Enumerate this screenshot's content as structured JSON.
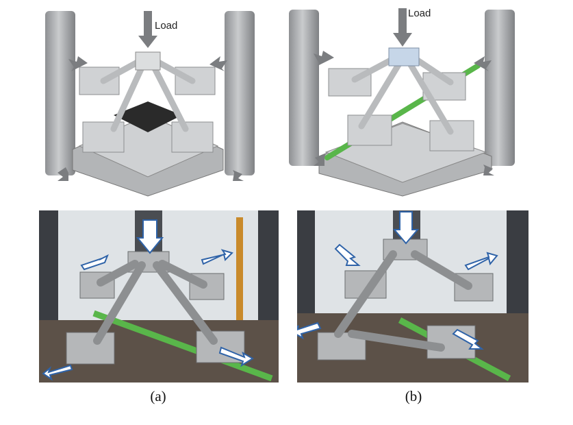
{
  "figure": {
    "panels": [
      {
        "id": "a",
        "load_label": "Load",
        "caption": "(a)"
      },
      {
        "id": "b",
        "load_label": "Load",
        "caption": "(b)"
      }
    ]
  },
  "colors": {
    "steel_light": "#d4d6d8",
    "steel_mid": "#a9abad",
    "steel_dark": "#6f7173",
    "arrow_gray": "#7b7d80",
    "green_rod": "#59b64a",
    "photo_arrow_outline": "#2f63a8"
  }
}
